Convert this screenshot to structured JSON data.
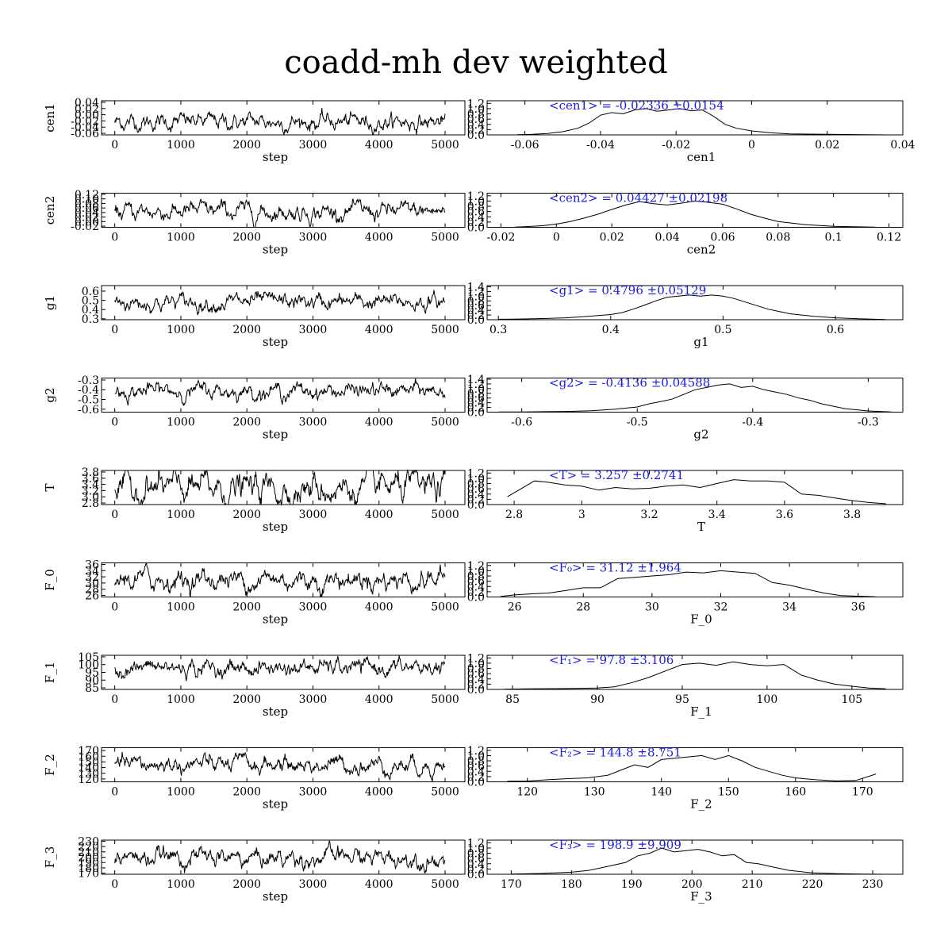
{
  "title": "coadd-mh dev weighted",
  "chart_data": [
    {
      "param": "cen1",
      "type": "line",
      "xlabel": "step",
      "ylabel": "cen1",
      "xlim": [
        -200,
        5300
      ],
      "xticks": [
        0,
        1000,
        2000,
        3000,
        4000,
        5000
      ],
      "ylim": [
        -0.065,
        0.045
      ],
      "yticks": [
        "0.04",
        "0.02",
        "0.00",
        "-0.02",
        "-0.04",
        "-0.06"
      ],
      "ytick_values": [
        0.04,
        0.02,
        0.0,
        -0.02,
        -0.04,
        -0.06
      ],
      "trace_mean": -0.0234,
      "trace_sd": 0.0154
    },
    {
      "param": "cen1",
      "type": "line",
      "xlabel": "cen1",
      "ylabel": "",
      "xlim": [
        -0.07,
        0.04
      ],
      "xticks": [
        "-0.06",
        "-0.04",
        "-0.02",
        "0",
        "0.02",
        "0.04"
      ],
      "xtick_values": [
        -0.06,
        -0.04,
        -0.02,
        0,
        0.02,
        0.04
      ],
      "ylim": [
        0,
        1.3
      ],
      "yticks": [
        "1.2",
        "1.0",
        "0.8",
        "0.6",
        "0.4",
        "0.2",
        "0.0"
      ],
      "ytick_values": [
        1.2,
        1.0,
        0.8,
        0.6,
        0.4,
        0.2,
        0.0
      ],
      "x": [
        -0.062,
        -0.058,
        -0.054,
        -0.05,
        -0.046,
        -0.043,
        -0.04,
        -0.037,
        -0.034,
        -0.031,
        -0.028,
        -0.025,
        -0.022,
        -0.019,
        -0.016,
        -0.013,
        -0.01,
        -0.007,
        -0.004,
        0.0,
        0.005,
        0.01,
        0.02,
        0.03,
        0.036
      ],
      "y": [
        0.01,
        0.02,
        0.05,
        0.12,
        0.25,
        0.45,
        0.75,
        0.85,
        0.8,
        0.95,
        1.0,
        0.9,
        0.95,
        1.0,
        0.92,
        0.95,
        0.7,
        0.4,
        0.25,
        0.15,
        0.08,
        0.04,
        0.02,
        0.01,
        0.0
      ],
      "annotation": "<cen1> = -0.02336 ±0.0154"
    },
    {
      "param": "cen2",
      "type": "line",
      "xlabel": "step",
      "ylabel": "cen2",
      "xlim": [
        -200,
        5300
      ],
      "xticks": [
        0,
        1000,
        2000,
        3000,
        4000,
        5000
      ],
      "ylim": [
        -0.025,
        0.125
      ],
      "yticks": [
        "0.12",
        "0.10",
        "0.08",
        "0.06",
        "0.04",
        "0.02",
        "0.00",
        "-0.02"
      ],
      "ytick_values": [
        0.12,
        0.1,
        0.08,
        0.06,
        0.04,
        0.02,
        0.0,
        -0.02
      ],
      "trace_mean": 0.0443,
      "trace_sd": 0.022
    },
    {
      "param": "cen2",
      "type": "line",
      "xlabel": "cen2",
      "ylabel": "",
      "xlim": [
        -0.025,
        0.125
      ],
      "xticks": [
        "-0.02",
        "0",
        "0.02",
        "0.04",
        "0.06",
        "0.08",
        "0.1",
        "0.12"
      ],
      "xtick_values": [
        -0.02,
        0,
        0.02,
        0.04,
        0.06,
        0.08,
        0.1,
        0.12
      ],
      "ylim": [
        0,
        1.3
      ],
      "yticks": [
        "1.2",
        "1.0",
        "0.8",
        "0.6",
        "0.4",
        "0.2",
        "0.0"
      ],
      "ytick_values": [
        1.2,
        1.0,
        0.8,
        0.6,
        0.4,
        0.2,
        0.0
      ],
      "x": [
        -0.015,
        -0.01,
        -0.005,
        0.0,
        0.005,
        0.01,
        0.015,
        0.02,
        0.025,
        0.03,
        0.035,
        0.04,
        0.045,
        0.05,
        0.055,
        0.06,
        0.065,
        0.07,
        0.075,
        0.08,
        0.09,
        0.1,
        0.115
      ],
      "y": [
        0.01,
        0.03,
        0.06,
        0.12,
        0.22,
        0.35,
        0.5,
        0.68,
        0.85,
        0.98,
        0.9,
        0.85,
        0.92,
        1.0,
        0.95,
        0.88,
        0.7,
        0.5,
        0.35,
        0.22,
        0.1,
        0.04,
        0.01
      ],
      "annotation": "<cen2> = 0.04427 ±0.02198"
    },
    {
      "param": "g1",
      "type": "line",
      "xlabel": "step",
      "ylabel": "g1",
      "xlim": [
        -200,
        5300
      ],
      "xticks": [
        0,
        1000,
        2000,
        3000,
        4000,
        5000
      ],
      "ylim": [
        0.29,
        0.66
      ],
      "yticks": [
        "0.6",
        "0.5",
        "0.4",
        "0.3"
      ],
      "ytick_values": [
        0.6,
        0.5,
        0.4,
        0.3
      ],
      "trace_mean": 0.4796,
      "trace_sd": 0.051
    },
    {
      "param": "g1",
      "type": "line",
      "xlabel": "g1",
      "ylabel": "",
      "xlim": [
        0.29,
        0.66
      ],
      "xticks": [
        "0.3",
        "0.4",
        "0.5",
        "0.6"
      ],
      "xtick_values": [
        0.3,
        0.4,
        0.5,
        0.6
      ],
      "ylim": [
        0,
        1.45
      ],
      "yticks": [
        "1.4",
        "1.2",
        "1.0",
        "0.8",
        "0.6",
        "0.4",
        "0.2",
        "0.0"
      ],
      "ytick_values": [
        1.4,
        1.2,
        1.0,
        0.8,
        0.6,
        0.4,
        0.2,
        0.0
      ],
      "x": [
        0.3,
        0.32,
        0.34,
        0.36,
        0.38,
        0.4,
        0.41,
        0.42,
        0.43,
        0.44,
        0.45,
        0.46,
        0.47,
        0.48,
        0.49,
        0.5,
        0.51,
        0.52,
        0.53,
        0.54,
        0.55,
        0.56,
        0.58,
        0.6,
        0.62,
        0.645
      ],
      "y": [
        0.02,
        0.03,
        0.05,
        0.08,
        0.14,
        0.22,
        0.3,
        0.45,
        0.62,
        0.8,
        0.95,
        1.0,
        1.05,
        1.0,
        1.05,
        1.0,
        0.9,
        0.75,
        0.6,
        0.45,
        0.35,
        0.25,
        0.15,
        0.08,
        0.04,
        0.01
      ],
      "annotation": "<g1> = 0.4796 ±0.05129"
    },
    {
      "param": "g2",
      "type": "line",
      "xlabel": "step",
      "ylabel": "g2",
      "xlim": [
        -200,
        5300
      ],
      "xticks": [
        0,
        1000,
        2000,
        3000,
        4000,
        5000
      ],
      "ylim": [
        -0.63,
        -0.28
      ],
      "yticks": [
        "-0.3",
        "-0.4",
        "-0.5",
        "-0.6"
      ],
      "ytick_values": [
        -0.3,
        -0.4,
        -0.5,
        -0.6
      ],
      "trace_mean": -0.4136,
      "trace_sd": 0.046
    },
    {
      "param": "g2",
      "type": "line",
      "xlabel": "g2",
      "ylabel": "",
      "xlim": [
        -0.63,
        -0.27
      ],
      "xticks": [
        "-0.6",
        "-0.5",
        "-0.4",
        "-0.3"
      ],
      "xtick_values": [
        -0.6,
        -0.5,
        -0.4,
        -0.3
      ],
      "ylim": [
        0,
        1.45
      ],
      "yticks": [
        "1.4",
        "1.2",
        "1.0",
        "0.8",
        "0.6",
        "0.4",
        "0.2",
        "0.0"
      ],
      "ytick_values": [
        1.4,
        1.2,
        1.0,
        0.8,
        0.6,
        0.4,
        0.2,
        0.0
      ],
      "x": [
        -0.62,
        -0.6,
        -0.58,
        -0.56,
        -0.54,
        -0.52,
        -0.5,
        -0.49,
        -0.48,
        -0.47,
        -0.46,
        -0.45,
        -0.44,
        -0.43,
        -0.42,
        -0.41,
        -0.4,
        -0.39,
        -0.38,
        -0.37,
        -0.36,
        -0.35,
        -0.34,
        -0.32,
        -0.3,
        -0.28
      ],
      "y": [
        0.01,
        0.01,
        0.02,
        0.03,
        0.06,
        0.12,
        0.22,
        0.35,
        0.45,
        0.55,
        0.75,
        0.95,
        1.05,
        1.15,
        1.2,
        1.05,
        1.1,
        0.95,
        0.85,
        0.75,
        0.6,
        0.5,
        0.35,
        0.15,
        0.05,
        0.01
      ],
      "annotation": "<g2> = -0.4136 ±0.04588"
    },
    {
      "param": "T",
      "type": "line",
      "xlabel": "step",
      "ylabel": "T",
      "xlim": [
        -200,
        5300
      ],
      "xticks": [
        0,
        1000,
        2000,
        3000,
        4000,
        5000
      ],
      "ylim": [
        2.75,
        3.85
      ],
      "yticks": [
        "3.8",
        "3.6",
        "3.4",
        "3.2",
        "3.0",
        "2.8"
      ],
      "ytick_values": [
        3.8,
        3.6,
        3.4,
        3.2,
        3.0,
        2.8
      ],
      "trace_mean": 3.257,
      "trace_sd": 0.274
    },
    {
      "param": "T",
      "type": "line",
      "xlabel": "T",
      "ylabel": "",
      "xlim": [
        2.72,
        3.95
      ],
      "xticks": [
        "2.8",
        "3",
        "3.2",
        "3.4",
        "3.6",
        "3.8"
      ],
      "xtick_values": [
        2.8,
        3.0,
        3.2,
        3.4,
        3.6,
        3.8
      ],
      "ylim": [
        0,
        1.3
      ],
      "yticks": [
        "1.2",
        "1.0",
        "0.8",
        "0.6",
        "0.4",
        "0.2",
        "0.0"
      ],
      "ytick_values": [
        1.2,
        1.0,
        0.8,
        0.6,
        0.4,
        0.2,
        0.0
      ],
      "x": [
        2.78,
        2.82,
        2.86,
        2.9,
        2.95,
        3.0,
        3.05,
        3.1,
        3.15,
        3.2,
        3.25,
        3.3,
        3.35,
        3.4,
        3.45,
        3.5,
        3.55,
        3.6,
        3.65,
        3.7,
        3.75,
        3.8,
        3.85,
        3.9
      ],
      "y": [
        0.3,
        0.6,
        0.9,
        0.85,
        0.75,
        0.7,
        0.55,
        0.65,
        0.6,
        0.62,
        0.7,
        0.75,
        0.65,
        0.8,
        0.95,
        0.9,
        0.9,
        0.85,
        0.4,
        0.35,
        0.25,
        0.15,
        0.08,
        0.03
      ],
      "annotation": "<T> = 3.257 ±0.2741"
    },
    {
      "param": "F_0",
      "type": "line",
      "xlabel": "step",
      "ylabel": "F_0",
      "xlim": [
        -200,
        5300
      ],
      "xticks": [
        0,
        1000,
        2000,
        3000,
        4000,
        5000
      ],
      "ylim": [
        25.5,
        36.5
      ],
      "yticks": [
        "36",
        "34",
        "32",
        "30",
        "28",
        "26"
      ],
      "ytick_values": [
        36,
        34,
        32,
        30,
        28,
        26
      ],
      "trace_mean": 31.12,
      "trace_sd": 1.96
    },
    {
      "param": "F_0",
      "type": "line",
      "xlabel": "F_0",
      "ylabel": "",
      "xlim": [
        25.2,
        37.3
      ],
      "xticks": [
        "26",
        "28",
        "30",
        "32",
        "34",
        "36"
      ],
      "xtick_values": [
        26,
        28,
        30,
        32,
        34,
        36
      ],
      "ylim": [
        0,
        1.3
      ],
      "yticks": [
        "1.2",
        "1.0",
        "0.8",
        "0.6",
        "0.4",
        "0.2",
        "0.0"
      ],
      "ytick_values": [
        1.2,
        1.0,
        0.8,
        0.6,
        0.4,
        0.2,
        0.0
      ],
      "x": [
        25.6,
        26.0,
        26.5,
        27.0,
        27.5,
        28.0,
        28.5,
        29.0,
        29.5,
        30.0,
        30.5,
        31.0,
        31.5,
        32.0,
        32.5,
        33.0,
        33.5,
        34.0,
        34.5,
        35.0,
        35.5,
        36.0,
        36.5
      ],
      "y": [
        0.02,
        0.08,
        0.12,
        0.15,
        0.25,
        0.35,
        0.35,
        0.7,
        0.75,
        0.8,
        0.85,
        0.95,
        0.92,
        1.0,
        0.95,
        0.9,
        0.55,
        0.45,
        0.3,
        0.15,
        0.05,
        0.03,
        0.01
      ],
      "annotation": "<F₀> = 31.12 ±1.964"
    },
    {
      "param": "F_1",
      "type": "line",
      "xlabel": "step",
      "ylabel": "F_1",
      "xlim": [
        -200,
        5300
      ],
      "xticks": [
        0,
        1000,
        2000,
        3000,
        4000,
        5000
      ],
      "ylim": [
        84,
        106
      ],
      "yticks": [
        "105",
        "100",
        "95",
        "90",
        "85"
      ],
      "ytick_values": [
        105,
        100,
        95,
        90,
        85
      ],
      "trace_mean": 97.8,
      "trace_sd": 3.1
    },
    {
      "param": "F_1",
      "type": "line",
      "xlabel": "F_1",
      "ylabel": "",
      "xlim": [
        83.5,
        108
      ],
      "xticks": [
        "85",
        "90",
        "95",
        "100",
        "105"
      ],
      "xtick_values": [
        85,
        90,
        95,
        100,
        105
      ],
      "ylim": [
        0,
        1.3
      ],
      "yticks": [
        "1.2",
        "1.0",
        "0.8",
        "0.6",
        "0.4",
        "0.2",
        "0.0"
      ],
      "ytick_values": [
        1.2,
        1.0,
        0.8,
        0.6,
        0.4,
        0.2,
        0.0
      ],
      "x": [
        84.5,
        86,
        88,
        90,
        91,
        92,
        93,
        94,
        95,
        96,
        97,
        98,
        99,
        100,
        101,
        102,
        103,
        104,
        105,
        106,
        107
      ],
      "y": [
        0.01,
        0.02,
        0.03,
        0.05,
        0.1,
        0.25,
        0.45,
        0.7,
        0.95,
        1.0,
        0.92,
        1.05,
        0.95,
        0.9,
        0.95,
        0.55,
        0.35,
        0.2,
        0.12,
        0.05,
        0.02
      ],
      "annotation": "<F₁> = 97.8 ±3.106"
    },
    {
      "param": "F_2",
      "type": "line",
      "xlabel": "step",
      "ylabel": "F_2",
      "xlim": [
        -200,
        5300
      ],
      "xticks": [
        0,
        1000,
        2000,
        3000,
        4000,
        5000
      ],
      "ylim": [
        115,
        175
      ],
      "yticks": [
        "170",
        "160",
        "150",
        "140",
        "130",
        "120"
      ],
      "ytick_values": [
        170,
        160,
        150,
        140,
        130,
        120
      ],
      "trace_mean": 144.8,
      "trace_sd": 8.75
    },
    {
      "param": "F_2",
      "type": "line",
      "xlabel": "F_2",
      "ylabel": "",
      "xlim": [
        114,
        176
      ],
      "xticks": [
        "120",
        "130",
        "140",
        "150",
        "160",
        "170"
      ],
      "xtick_values": [
        120,
        130,
        140,
        150,
        160,
        170
      ],
      "ylim": [
        0,
        1.3
      ],
      "yticks": [
        "1.2",
        "1.0",
        "0.8",
        "0.6",
        "0.4",
        "0.2",
        "0.0"
      ],
      "ytick_values": [
        1.2,
        1.0,
        0.8,
        0.6,
        0.4,
        0.2,
        0.0
      ],
      "x": [
        117,
        120,
        123,
        126,
        129,
        132,
        134,
        136,
        138,
        140,
        142,
        144,
        146,
        148,
        150,
        152,
        154,
        156,
        158,
        160,
        163,
        166,
        169,
        172
      ],
      "y": [
        0.02,
        0.03,
        0.08,
        0.12,
        0.15,
        0.25,
        0.45,
        0.65,
        0.55,
        0.85,
        0.9,
        0.95,
        1.0,
        0.85,
        1.0,
        0.8,
        0.55,
        0.4,
        0.25,
        0.15,
        0.08,
        0.04,
        0.05,
        0.3
      ],
      "annotation": "<F₂> = 144.8 ±8.751"
    },
    {
      "param": "F_3",
      "type": "line",
      "xlabel": "step",
      "ylabel": "F_3",
      "xlim": [
        -200,
        5300
      ],
      "xticks": [
        0,
        1000,
        2000,
        3000,
        4000,
        5000
      ],
      "ylim": [
        168,
        232
      ],
      "yticks": [
        "230",
        "220",
        "210",
        "200",
        "190",
        "180",
        "170"
      ],
      "ytick_values": [
        230,
        220,
        210,
        200,
        190,
        180,
        170
      ],
      "trace_mean": 198.9,
      "trace_sd": 9.9
    },
    {
      "param": "F_3",
      "type": "line",
      "xlabel": "F_3",
      "ylabel": "",
      "xlim": [
        166,
        235
      ],
      "xticks": [
        "170",
        "180",
        "190",
        "200",
        "210",
        "220",
        "230"
      ],
      "xtick_values": [
        170,
        180,
        190,
        200,
        210,
        220,
        230
      ],
      "ylim": [
        0,
        1.3
      ],
      "yticks": [
        "1.2",
        "1.0",
        "0.8",
        "0.6",
        "0.4",
        "0.2",
        "0.0"
      ],
      "ytick_values": [
        1.2,
        1.0,
        0.8,
        0.6,
        0.4,
        0.2,
        0.0
      ],
      "x": [
        170,
        175,
        180,
        183,
        186,
        189,
        191,
        193,
        195,
        197,
        199,
        201,
        203,
        205,
        207,
        209,
        211,
        213,
        216,
        220,
        224,
        228,
        232
      ],
      "y": [
        0.01,
        0.03,
        0.08,
        0.15,
        0.3,
        0.45,
        0.7,
        0.8,
        1.0,
        0.85,
        0.9,
        0.95,
        0.85,
        0.7,
        0.75,
        0.45,
        0.4,
        0.3,
        0.15,
        0.05,
        0.02,
        0.01,
        0.0
      ],
      "annotation": "<F₃> = 198.9 ±9.909"
    }
  ]
}
